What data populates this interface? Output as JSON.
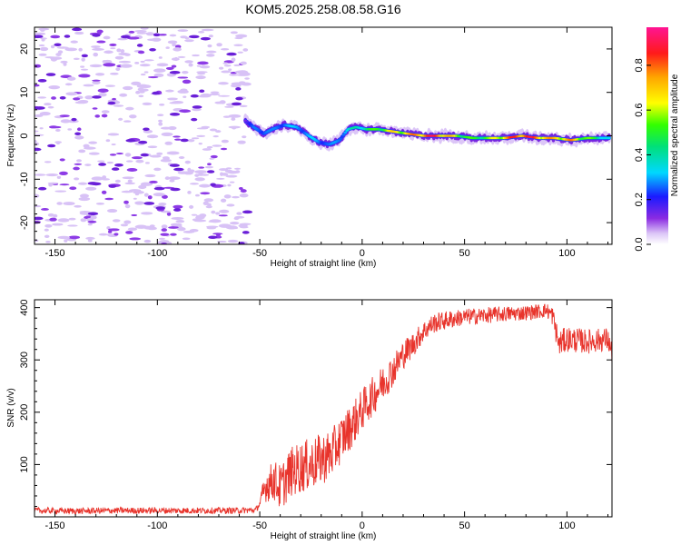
{
  "chart_data": [
    {
      "type": "heatmap",
      "title": "KOM5.2025.258.08.58.G16",
      "xlabel": "Height of straight line (km)",
      "ylabel": "Frequency (Hz)",
      "xlim": [
        -160,
        122
      ],
      "ylim": [
        -25,
        25
      ],
      "xticks": [
        -150,
        -100,
        -50,
        0,
        50,
        100
      ],
      "yticks": [
        -20,
        -10,
        0,
        10,
        20
      ],
      "colorbar": {
        "label": "Normalized spectral amplitude",
        "range": [
          0,
          0.97
        ],
        "ticks": [
          "0.0",
          "0.2",
          "0.4",
          "0.6",
          "0.8"
        ]
      },
      "noise_region_km": [
        -160,
        -56
      ],
      "doppler_trace": [
        {
          "x": -57,
          "y": 3.5,
          "amp": 0.15
        },
        {
          "x": -53,
          "y": 2.0,
          "amp": 0.25
        },
        {
          "x": -48,
          "y": 0.5,
          "amp": 0.3
        },
        {
          "x": -44,
          "y": 1.5,
          "amp": 0.25
        },
        {
          "x": -38,
          "y": 2.5,
          "amp": 0.3
        },
        {
          "x": -32,
          "y": 2.0,
          "amp": 0.3
        },
        {
          "x": -26,
          "y": 0.0,
          "amp": 0.3
        },
        {
          "x": -21,
          "y": -1.5,
          "amp": 0.3
        },
        {
          "x": -16,
          "y": -2.0,
          "amp": 0.25
        },
        {
          "x": -11,
          "y": -1.0,
          "amp": 0.3
        },
        {
          "x": -7,
          "y": 1.5,
          "amp": 0.35
        },
        {
          "x": -3,
          "y": 2.0,
          "amp": 0.4
        },
        {
          "x": 2,
          "y": 1.5,
          "amp": 0.45
        },
        {
          "x": 8,
          "y": 1.5,
          "amp": 0.55
        },
        {
          "x": 15,
          "y": 1.0,
          "amp": 0.65
        },
        {
          "x": 22,
          "y": 0.5,
          "amp": 0.7
        },
        {
          "x": 30,
          "y": 0.0,
          "amp": 0.85
        },
        {
          "x": 38,
          "y": 0.0,
          "amp": 0.85
        },
        {
          "x": 46,
          "y": 0.0,
          "amp": 0.6
        },
        {
          "x": 54,
          "y": -0.5,
          "amp": 0.5
        },
        {
          "x": 62,
          "y": -0.5,
          "amp": 0.55
        },
        {
          "x": 70,
          "y": -0.5,
          "amp": 0.75
        },
        {
          "x": 78,
          "y": 0.0,
          "amp": 0.9
        },
        {
          "x": 86,
          "y": -0.5,
          "amp": 0.8
        },
        {
          "x": 94,
          "y": -0.5,
          "amp": 0.7
        },
        {
          "x": 102,
          "y": -1.0,
          "amp": 0.75
        },
        {
          "x": 110,
          "y": -0.5,
          "amp": 0.55
        },
        {
          "x": 116,
          "y": -0.5,
          "amp": 0.45
        },
        {
          "x": 121,
          "y": -0.5,
          "amp": 0.3
        }
      ]
    },
    {
      "type": "line",
      "title": "",
      "xlabel": "Height of straight line (km)",
      "ylabel": "SNR (v/v)",
      "xlim": [
        -160,
        122
      ],
      "ylim": [
        0,
        415
      ],
      "xticks": [
        -150,
        -100,
        -50,
        0,
        50,
        100
      ],
      "yticks": [
        100,
        200,
        300,
        400
      ],
      "series": [
        {
          "name": "SNR",
          "color": "#e8342c",
          "x": [
            -160,
            -140,
            -120,
            -100,
            -80,
            -60,
            -52,
            -50,
            -47,
            -43,
            -40,
            -35,
            -30,
            -25,
            -20,
            -15,
            -10,
            -5,
            0,
            5,
            10,
            15,
            20,
            25,
            30,
            35,
            40,
            50,
            60,
            70,
            80,
            90,
            93,
            96,
            100,
            110,
            120,
            122
          ],
          "y": [
            12,
            11,
            12,
            12,
            12,
            12,
            13,
            25,
            60,
            70,
            55,
            85,
            95,
            100,
            110,
            120,
            150,
            175,
            205,
            230,
            255,
            280,
            310,
            330,
            355,
            370,
            375,
            382,
            385,
            388,
            390,
            395,
            385,
            330,
            340,
            335,
            340,
            310
          ],
          "noise_band": [
            [
              -160,
              6
            ],
            [
              -50,
              6
            ],
            [
              -48,
              30
            ],
            [
              -40,
              45
            ],
            [
              -30,
              50
            ],
            [
              -20,
              50
            ],
            [
              -10,
              45
            ],
            [
              0,
              40
            ],
            [
              10,
              35
            ],
            [
              20,
              28
            ],
            [
              30,
              20
            ],
            [
              50,
              16
            ],
            [
              90,
              14
            ],
            [
              96,
              25
            ],
            [
              122,
              22
            ]
          ]
        }
      ]
    }
  ]
}
